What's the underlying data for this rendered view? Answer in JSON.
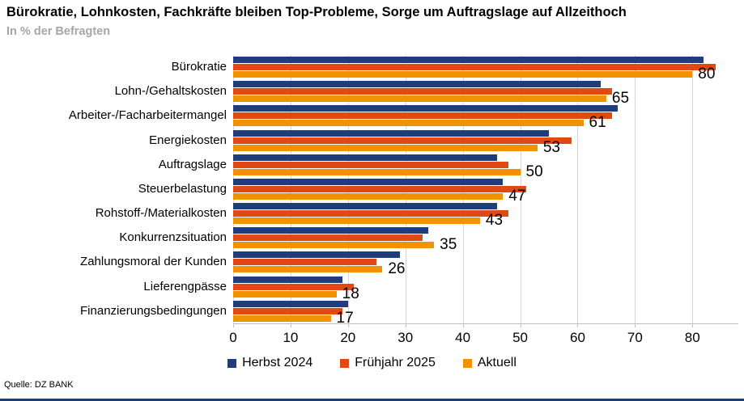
{
  "header": {
    "title": "Bürokratie, Lohnkosten, Fachkräfte bleiben Top-Probleme, Sorge um Auftragslage auf Allzeithoch",
    "subtitle": "In % der Befragten"
  },
  "footer": {
    "source": "Quelle: DZ BANK"
  },
  "colors": {
    "herbst_blue": "#1F3D7C",
    "fruehjahr_red": "#E04A12",
    "aktuell_orange": "#F39200",
    "gridline": "#D6D6D6",
    "subtitle_gray": "#A6A6A6",
    "bottom_rule": "#1F3D7C"
  },
  "chart_data": {
    "type": "bar",
    "orientation": "horizontal",
    "title": "Bürokratie, Lohnkosten, Fachkräfte bleiben Top-Probleme, Sorge um Auftragslage auf Allzeithoch",
    "subtitle": "In % der Befragten",
    "categories": [
      "Bürokratie",
      "Lohn-/Gehaltskosten",
      "Arbeiter-/Facharbeitermangel",
      "Energiekosten",
      "Auftragslage",
      "Steuerbelastung",
      "Rohstoff-/Materialkosten",
      "Konkurrenzsituation",
      "Zahlungsmoral der Kunden",
      "Lieferengpässe",
      "Finanzierungsbedingungen"
    ],
    "series": [
      {
        "name": "Herbst 2024",
        "color": "#1F3D7C",
        "values": [
          82,
          64,
          67,
          55,
          46,
          47,
          46,
          34,
          29,
          19,
          20
        ]
      },
      {
        "name": "Frühjahr 2025",
        "color": "#E04A12",
        "values": [
          84,
          66,
          66,
          59,
          48,
          51,
          48,
          33,
          25,
          21,
          19
        ]
      },
      {
        "name": "Aktuell",
        "color": "#F39200",
        "values": [
          80,
          65,
          61,
          53,
          50,
          47,
          43,
          35,
          26,
          18,
          17
        ]
      }
    ],
    "data_labels_series": "Aktuell",
    "data_labels": [
      80,
      65,
      61,
      53,
      50,
      47,
      43,
      35,
      26,
      18,
      17
    ],
    "xticks": [
      0,
      10,
      20,
      30,
      40,
      50,
      60,
      70,
      80
    ],
    "xlim": [
      0,
      88
    ],
    "grid": true,
    "legend_position": "bottom"
  }
}
